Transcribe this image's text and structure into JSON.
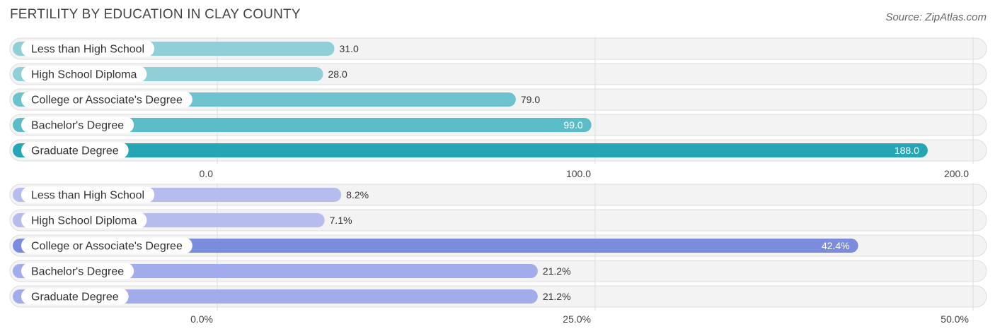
{
  "title": "FERTILITY BY EDUCATION IN CLAY COUNTY",
  "source": "Source: ZipAtlas.com",
  "chart_data": [
    {
      "type": "bar",
      "orientation": "horizontal",
      "categories": [
        "Less than High School",
        "High School Diploma",
        "College or Associate's Degree",
        "Bachelor's Degree",
        "Graduate Degree"
      ],
      "values": [
        31.0,
        28.0,
        79.0,
        99.0,
        188.0
      ],
      "value_labels": [
        "31.0",
        "28.0",
        "79.0",
        "99.0",
        "188.0"
      ],
      "ticks": [
        0,
        100,
        200
      ],
      "tick_labels": [
        "0.0",
        "100.0",
        "200.0"
      ],
      "xlim": [
        0,
        200
      ],
      "grid": true,
      "colors": [
        "#8fd0d8",
        "#8fd0d8",
        "#6cc3cd",
        "#5abcc6",
        "#26a5b5"
      ]
    },
    {
      "type": "bar",
      "orientation": "horizontal",
      "categories": [
        "Less than High School",
        "High School Diploma",
        "College or Associate's Degree",
        "Bachelor's Degree",
        "Graduate Degree"
      ],
      "values": [
        8.2,
        7.1,
        42.4,
        21.2,
        21.2
      ],
      "value_labels": [
        "8.2%",
        "7.1%",
        "42.4%",
        "21.2%",
        "21.2%"
      ],
      "ticks": [
        0,
        25,
        50
      ],
      "tick_labels": [
        "0.0%",
        "25.0%",
        "50.0%"
      ],
      "xlim": [
        0,
        50
      ],
      "grid": true,
      "colors": [
        "#b6bdee",
        "#b6bdee",
        "#7b8cdd",
        "#a2acea",
        "#a2acea"
      ]
    }
  ]
}
